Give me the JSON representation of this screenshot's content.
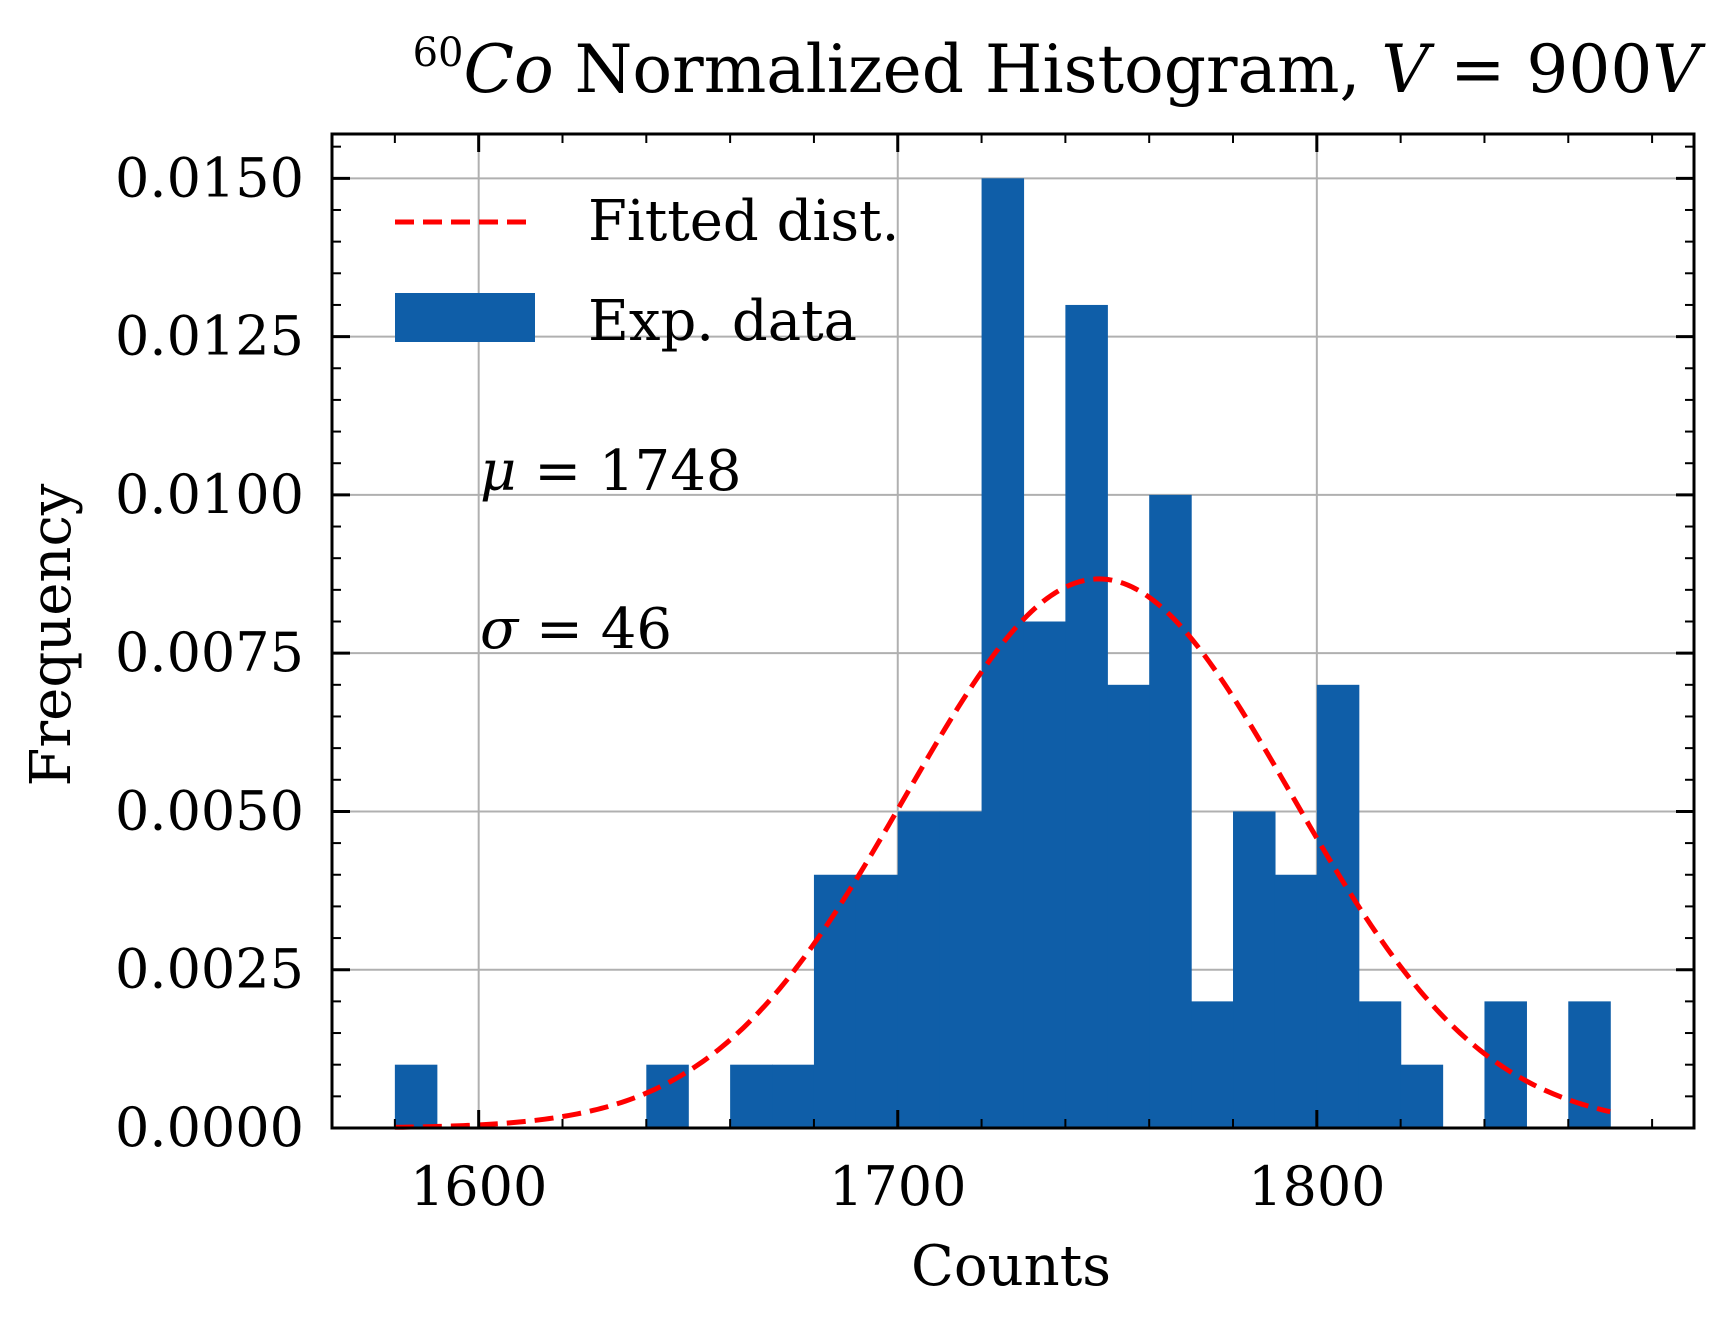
{
  "chart_data": {
    "type": "bar",
    "title": {
      "superscript": "60",
      "isotope": "Co",
      "text": " Normalized Histogram, ",
      "var": "V",
      "value": " = 900",
      "unit": "V"
    },
    "xlabel": "Counts",
    "ylabel": "Frequency",
    "xlim": [
      1565,
      1890
    ],
    "ylim": [
      0.0,
      0.0157
    ],
    "xticks": [
      1600,
      1700,
      1800
    ],
    "xtick_labels": [
      "1600",
      "1700",
      "1800"
    ],
    "yticks": [
      0.0,
      0.0025,
      0.005,
      0.0075,
      0.01,
      0.0125,
      0.015
    ],
    "ytick_labels": [
      "0.0000",
      "0.0025",
      "0.0050",
      "0.0075",
      "0.0100",
      "0.0125",
      "0.0150"
    ],
    "grid": true,
    "legend_position": "top-left",
    "bar_color": "#0f5ea8",
    "fit_color": "#ff0000",
    "series": [
      {
        "name": "Exp. data",
        "kind": "histogram",
        "bin_start": 1580,
        "bin_width": 10,
        "values": [
          0.001,
          0.0,
          0.0,
          0.0,
          0.0,
          0.0,
          0.001,
          0.0,
          0.001,
          0.001,
          0.004,
          0.004,
          0.005,
          0.005,
          0.015,
          0.008,
          0.013,
          0.007,
          0.01,
          0.002,
          0.005,
          0.004,
          0.007,
          0.002,
          0.001,
          0.0,
          0.002,
          0.0,
          0.002
        ]
      },
      {
        "name": "Fitted dist.",
        "kind": "normal",
        "mu": 1748,
        "sigma": 46,
        "x_range": [
          1580,
          1870
        ],
        "style": "dashed"
      }
    ],
    "annotations": [
      {
        "symbol": "μ",
        "text": " = 1748"
      },
      {
        "symbol": "σ",
        "text": " = 46"
      }
    ]
  }
}
